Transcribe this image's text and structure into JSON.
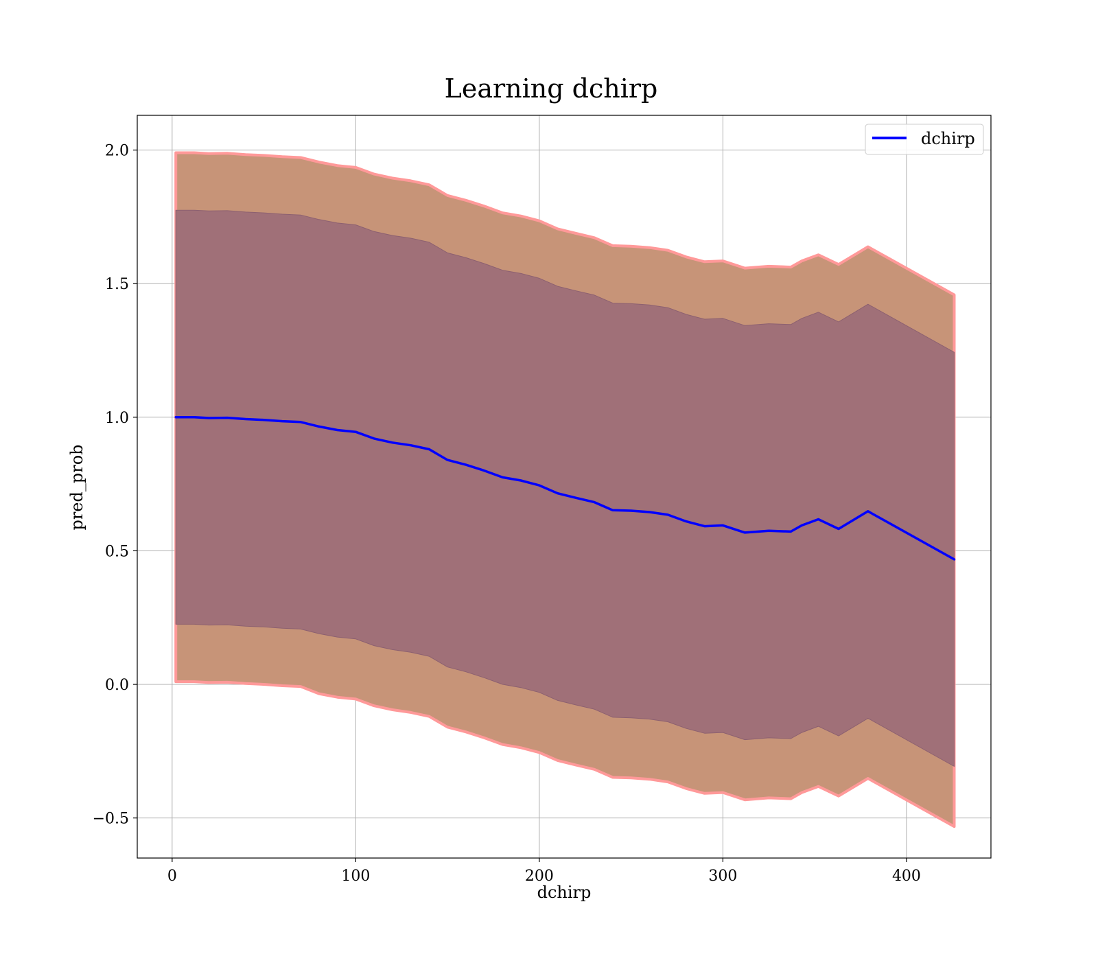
{
  "chart_data": {
    "type": "line",
    "title": "Learning dchirp",
    "xlabel": "dchirp",
    "ylabel": "pred_prob",
    "xlim": [
      -19,
      446
    ],
    "ylim": [
      -0.65,
      2.13
    ],
    "xticks": [
      0,
      100,
      200,
      300,
      400
    ],
    "xtick_labels": [
      "0",
      "100",
      "200",
      "300",
      "400"
    ],
    "yticks": [
      -0.5,
      0.0,
      0.5,
      1.0,
      1.5,
      2.0
    ],
    "ytick_labels": [
      "−0.5",
      "0.0",
      "0.5",
      "1.0",
      "1.5",
      "2.0"
    ],
    "grid": true,
    "legend_position": "top-right",
    "series": [
      {
        "name": "dchirp",
        "color": "#0000ff",
        "x": [
          2,
          12,
          20,
          30,
          40,
          50,
          60,
          70,
          80,
          90,
          100,
          110,
          120,
          130,
          140,
          150,
          160,
          170,
          180,
          190,
          200,
          210,
          220,
          230,
          240,
          250,
          260,
          270,
          280,
          290,
          300,
          312,
          325,
          337,
          343,
          352,
          363,
          379,
          426
        ],
        "y": [
          1.0,
          1.0,
          0.997,
          0.998,
          0.993,
          0.99,
          0.985,
          0.982,
          0.965,
          0.952,
          0.945,
          0.92,
          0.905,
          0.895,
          0.88,
          0.84,
          0.822,
          0.8,
          0.775,
          0.763,
          0.745,
          0.715,
          0.698,
          0.682,
          0.652,
          0.65,
          0.645,
          0.635,
          0.61,
          0.592,
          0.595,
          0.568,
          0.575,
          0.572,
          0.595,
          0.618,
          0.582,
          0.648,
          0.468
        ]
      }
    ],
    "bands": [
      {
        "name": "outer",
        "fill_color": "#c79478",
        "edge_color": "#ff9999",
        "lower": [
          0.01,
          0.01,
          0.007,
          0.008,
          0.003,
          0.0,
          -0.005,
          -0.008,
          -0.035,
          -0.048,
          -0.055,
          -0.08,
          -0.095,
          -0.105,
          -0.12,
          -0.16,
          -0.178,
          -0.2,
          -0.225,
          -0.237,
          -0.255,
          -0.285,
          -0.302,
          -0.318,
          -0.348,
          -0.35,
          -0.355,
          -0.365,
          -0.39,
          -0.408,
          -0.405,
          -0.432,
          -0.425,
          -0.428,
          -0.405,
          -0.382,
          -0.418,
          -0.352,
          -0.532
        ],
        "upper": [
          1.99,
          1.99,
          1.987,
          1.988,
          1.983,
          1.98,
          1.975,
          1.972,
          1.955,
          1.942,
          1.935,
          1.91,
          1.895,
          1.885,
          1.87,
          1.83,
          1.812,
          1.79,
          1.765,
          1.753,
          1.735,
          1.705,
          1.688,
          1.672,
          1.642,
          1.64,
          1.635,
          1.625,
          1.6,
          1.582,
          1.585,
          1.558,
          1.565,
          1.562,
          1.585,
          1.608,
          1.572,
          1.638,
          1.458
        ]
      },
      {
        "name": "inner",
        "fill_color": "#a07078",
        "edge_color": "#8c6070",
        "lower": [
          0.225,
          0.225,
          0.222,
          0.223,
          0.218,
          0.215,
          0.21,
          0.207,
          0.19,
          0.177,
          0.17,
          0.145,
          0.13,
          0.12,
          0.105,
          0.065,
          0.047,
          0.025,
          0.0,
          -0.012,
          -0.03,
          -0.06,
          -0.077,
          -0.093,
          -0.123,
          -0.125,
          -0.13,
          -0.14,
          -0.165,
          -0.183,
          -0.18,
          -0.207,
          -0.2,
          -0.203,
          -0.18,
          -0.157,
          -0.193,
          -0.127,
          -0.307
        ],
        "upper": [
          1.775,
          1.775,
          1.772,
          1.773,
          1.768,
          1.765,
          1.76,
          1.757,
          1.74,
          1.727,
          1.72,
          1.695,
          1.68,
          1.67,
          1.655,
          1.615,
          1.597,
          1.575,
          1.55,
          1.538,
          1.52,
          1.49,
          1.473,
          1.457,
          1.427,
          1.425,
          1.42,
          1.41,
          1.385,
          1.367,
          1.37,
          1.343,
          1.35,
          1.347,
          1.37,
          1.393,
          1.357,
          1.423,
          1.243
        ]
      }
    ]
  }
}
